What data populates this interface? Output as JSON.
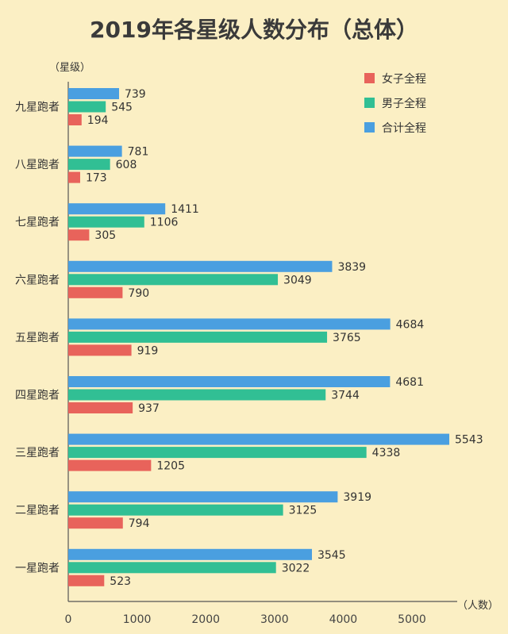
{
  "chart_data": {
    "type": "bar",
    "orientation": "horizontal",
    "title": "2019年各星级人数分布（总体）",
    "ylabel": "（星级）",
    "xlabel": "（人数）",
    "categories": [
      "九星跑者",
      "八星跑者",
      "七星跑者",
      "六星跑者",
      "五星跑者",
      "四星跑者",
      "三星跑者",
      "二星跑者",
      "一星跑者"
    ],
    "series": [
      {
        "name": "合计全程",
        "color": "#4a9fe0",
        "values": [
          739,
          781,
          1411,
          3839,
          4684,
          4681,
          5543,
          3919,
          3545
        ]
      },
      {
        "name": "男子全程",
        "color": "#31bf94",
        "values": [
          545,
          608,
          1106,
          3049,
          3765,
          3744,
          4338,
          3125,
          3022
        ]
      },
      {
        "name": "女子全程",
        "color": "#e8635b",
        "values": [
          194,
          173,
          305,
          790,
          919,
          937,
          1205,
          794,
          523
        ]
      }
    ],
    "legend_order": [
      "女子全程",
      "男子全程",
      "合计全程"
    ],
    "xticks": [
      "0",
      "1000",
      "2000",
      "3000",
      "4000",
      "5000"
    ],
    "xlim": [
      0,
      5600
    ],
    "grid": false,
    "legend": "top-right"
  }
}
